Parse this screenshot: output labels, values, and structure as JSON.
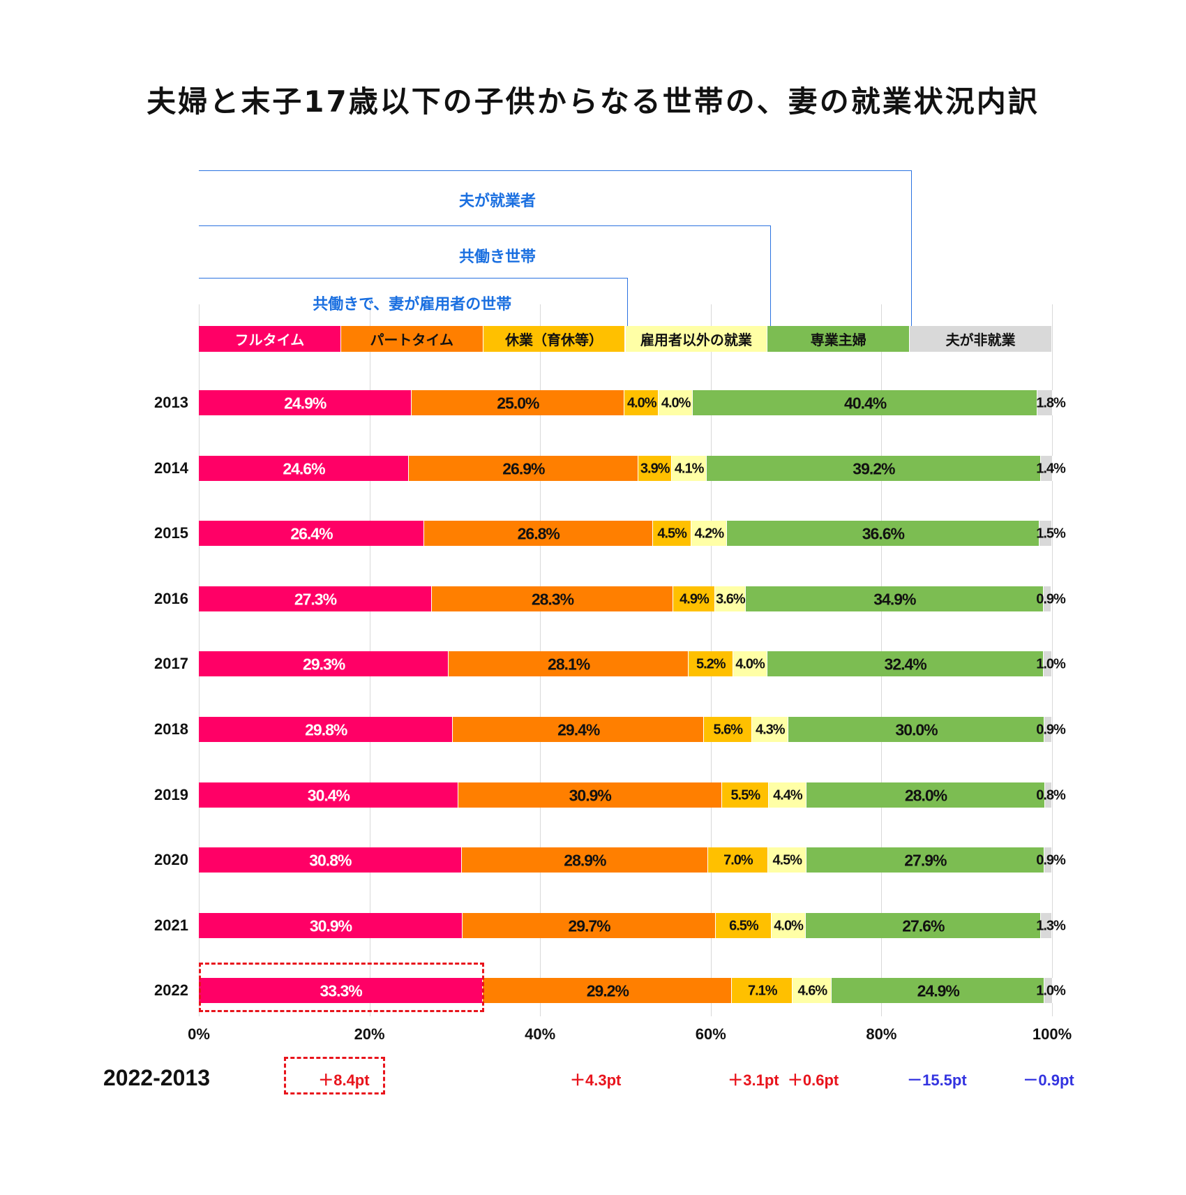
{
  "title": "夫婦と末子17歳以下の子供からなる世帯の、妻の就業状況内訳",
  "brackets": [
    {
      "label": "夫が就業者",
      "end_pct": 83.5
    },
    {
      "label": "共働き世帯",
      "end_pct": 67.0
    },
    {
      "label": "共働きで、妻が雇用者の世帯",
      "end_pct": 50.2
    }
  ],
  "chart_data": {
    "type": "bar",
    "orientation": "horizontal",
    "stacked": true,
    "xlim": [
      0,
      100
    ],
    "xticks": [
      "0%",
      "20%",
      "40%",
      "60%",
      "80%",
      "100%"
    ],
    "grid": true,
    "legend_position": "top",
    "categories": [
      "2013",
      "2014",
      "2015",
      "2016",
      "2017",
      "2018",
      "2019",
      "2020",
      "2021",
      "2022"
    ],
    "series": [
      {
        "name": "フルタイム",
        "color": "#ff0066",
        "text_color": "#ffffff",
        "values": [
          24.9,
          24.6,
          26.4,
          27.3,
          29.3,
          29.8,
          30.4,
          30.8,
          30.9,
          33.3
        ]
      },
      {
        "name": "パートタイム",
        "color": "#ff7f00",
        "text_color": "#111111",
        "values": [
          25.0,
          26.9,
          26.8,
          28.3,
          28.1,
          29.4,
          30.9,
          28.9,
          29.7,
          29.2
        ]
      },
      {
        "name": "休業（育休等）",
        "color": "#ffc000",
        "text_color": "#111111",
        "values": [
          4.0,
          3.9,
          4.5,
          4.9,
          5.2,
          5.6,
          5.5,
          7.0,
          6.5,
          7.1
        ]
      },
      {
        "name": "雇用者以外の就業",
        "color": "#ffffa6",
        "text_color": "#111111",
        "values": [
          4.0,
          4.1,
          4.2,
          3.6,
          4.0,
          4.3,
          4.4,
          4.5,
          4.0,
          4.6
        ]
      },
      {
        "name": "専業主婦",
        "color": "#7cbd52",
        "text_color": "#111111",
        "values": [
          40.4,
          39.2,
          36.6,
          34.9,
          32.4,
          30.0,
          28.0,
          27.9,
          27.6,
          24.9
        ]
      },
      {
        "name": "夫が非就業",
        "color": "#d9d9d9",
        "text_color": "#111111",
        "values": [
          1.8,
          1.4,
          1.5,
          0.9,
          1.0,
          0.9,
          0.8,
          0.9,
          1.3,
          1.0
        ]
      }
    ],
    "highlight": {
      "category": "2022",
      "series": "フルタイム"
    }
  },
  "diff": {
    "label": "2022-2013",
    "items": [
      {
        "text": "＋8.4pt",
        "color": "#e8141c",
        "at_pct": 17
      },
      {
        "text": "＋4.3pt",
        "color": "#e8141c",
        "at_pct": 46.5
      },
      {
        "text": "＋3.1pt",
        "color": "#e8141c",
        "at_pct": 65
      },
      {
        "text": "＋0.6pt",
        "color": "#e8141c",
        "at_pct": 72
      },
      {
        "text": "－15.5pt",
        "color": "#3333e0",
        "at_pct": 86.5
      },
      {
        "text": "－0.9pt",
        "color": "#3333e0",
        "at_pct": 99.6
      }
    ]
  }
}
